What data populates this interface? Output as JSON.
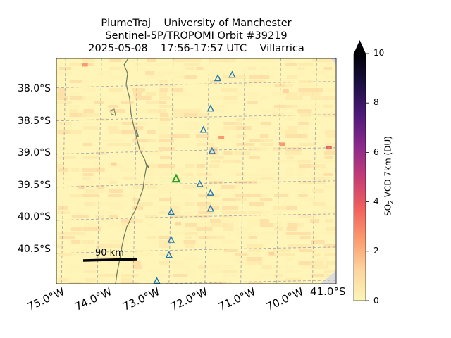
{
  "title_lines": [
    "PlumeTraj    University of Manchester",
    "Sentinel-5P/TROPOMI Orbit #39219",
    "2025-05-08    17:56-17:57 UTC    Villarrica"
  ],
  "chart_data": {
    "type": "heatmap",
    "lat_ticks": [
      "38.0°S",
      "38.5°S",
      "39.0°S",
      "39.5°S",
      "40.0°S",
      "40.5°S",
      "41.0°S"
    ],
    "lon_ticks": [
      "75.0°W",
      "74.0°W",
      "73.0°W",
      "72.0°W",
      "71.0°W",
      "70.0°W"
    ],
    "lat_range": [
      -41.0,
      -37.6
    ],
    "lon_range": [
      -73.6,
      -69.7
    ],
    "grid": true,
    "colorbar": {
      "label_prefix": "SO",
      "label_subscript": "2",
      "label_suffix": " VCD 7km (DU)",
      "min": 0,
      "max": 10,
      "ticks": [
        "0",
        "2",
        "4",
        "6",
        "8",
        "10"
      ],
      "extend": "max",
      "colormap": "magma_r",
      "colors": [
        "#fcf5b8",
        "#fdd49e",
        "#fb9a6d",
        "#f0605d",
        "#c43c75",
        "#8a2a8c",
        "#4e1a7a",
        "#1c1044",
        "#000004"
      ]
    },
    "scale_bar": {
      "label": "90 km"
    },
    "target_volcano": {
      "name": "Villarrica",
      "lat": -39.42,
      "lon": -71.93,
      "color": "#2ca02c"
    },
    "other_volcanoes": [
      {
        "lat": -37.85,
        "lon": -71.15
      },
      {
        "lat": -37.9,
        "lon": -71.35
      },
      {
        "lat": -38.36,
        "lon": -71.45
      },
      {
        "lat": -38.68,
        "lon": -71.55
      },
      {
        "lat": -39.0,
        "lon": -71.43
      },
      {
        "lat": -39.5,
        "lon": -71.6
      },
      {
        "lat": -39.63,
        "lon": -71.45
      },
      {
        "lat": -39.87,
        "lon": -71.45
      },
      {
        "lat": -39.92,
        "lon": -72.0
      },
      {
        "lat": -40.34,
        "lon": -72.0
      },
      {
        "lat": -40.57,
        "lon": -72.03
      },
      {
        "lat": -40.96,
        "lon": -72.2
      }
    ],
    "volcano_marker_color": "#1f77b4",
    "so2_hotspots": [
      {
        "lat": -37.7,
        "lon": -73.2,
        "value": 2.5
      },
      {
        "lat": -38.1,
        "lon": -70.4,
        "value": 1.6
      },
      {
        "lat": -38.8,
        "lon": -71.3,
        "value": 2.0
      },
      {
        "lat": -38.9,
        "lon": -70.45,
        "value": 2.8
      },
      {
        "lat": -38.95,
        "lon": -69.8,
        "value": 3.8
      },
      {
        "lat": -39.55,
        "lon": -73.25,
        "value": 1.8
      },
      {
        "lat": -40.1,
        "lon": -71.9,
        "value": 1.5
      },
      {
        "lat": -40.55,
        "lon": -70.6,
        "value": 1.4
      },
      {
        "lat": -39.2,
        "lon": -72.8,
        "value": 1.3
      }
    ],
    "background_color": "#fff5b8",
    "land_line_color": "#6b7a5e",
    "grid_color": "#a9a9a9"
  }
}
